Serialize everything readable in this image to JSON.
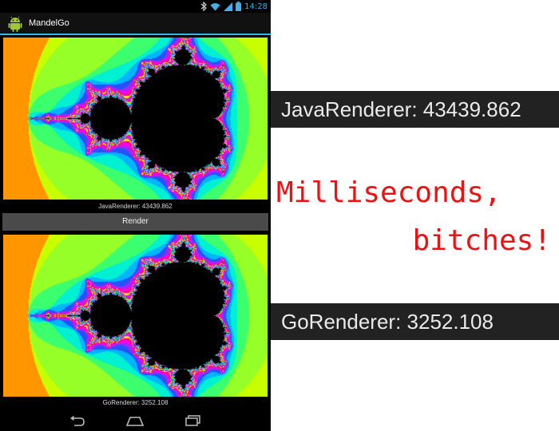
{
  "status_bar": {
    "time": "14:28"
  },
  "app": {
    "title": "MandelGo"
  },
  "labels": {
    "java_time": "JavaRenderer: 43439.862",
    "go_time": "GoRenderer: 3252.108"
  },
  "buttons": {
    "render": "Render"
  },
  "banners": {
    "java": "JavaRenderer: 43439.862",
    "go": "GoRenderer: 3252.108"
  },
  "slogan": {
    "line1": "Milliseconds,",
    "line2": "bitches!"
  },
  "colors": {
    "accent": "#33b5e5",
    "slogan": "#ee1111",
    "banner_bg": "#222222"
  },
  "icons": [
    "android-app-icon",
    "bluetooth-icon",
    "wifi-icon",
    "signal-icon",
    "battery-icon",
    "back-icon",
    "home-icon",
    "recent-apps-icon"
  ]
}
